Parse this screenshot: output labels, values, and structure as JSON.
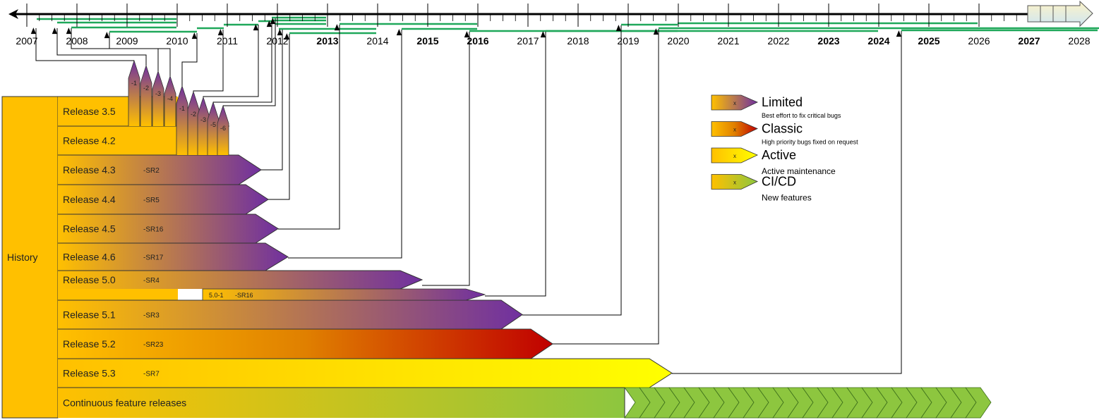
{
  "timeline": {
    "years": [
      {
        "label": "2007",
        "bold": false
      },
      {
        "label": "2008",
        "bold": false
      },
      {
        "label": "2009",
        "bold": false
      },
      {
        "label": "2010",
        "bold": false
      },
      {
        "label": "2011",
        "bold": false
      },
      {
        "label": "2012",
        "bold": false
      },
      {
        "label": "2013",
        "bold": true
      },
      {
        "label": "2014",
        "bold": false
      },
      {
        "label": "2015",
        "bold": true
      },
      {
        "label": "2016",
        "bold": true
      },
      {
        "label": "2017",
        "bold": false
      },
      {
        "label": "2018",
        "bold": false
      },
      {
        "label": "2019",
        "bold": false
      },
      {
        "label": "2020",
        "bold": false
      },
      {
        "label": "2021",
        "bold": false
      },
      {
        "label": "2022",
        "bold": false
      },
      {
        "label": "2023",
        "bold": true
      },
      {
        "label": "2024",
        "bold": true
      },
      {
        "label": "2025",
        "bold": true
      },
      {
        "label": "2026",
        "bold": false
      },
      {
        "label": "2027",
        "bold": true
      },
      {
        "label": "2028",
        "bold": false
      }
    ]
  },
  "history_label": "History",
  "releases": [
    {
      "label": "Release 3.5",
      "sr": "",
      "type": "limited"
    },
    {
      "label": "Release 4.2",
      "sr": "",
      "type": "limited"
    },
    {
      "label": "Release 4.3",
      "sr": "-SR2",
      "type": "limited"
    },
    {
      "label": "Release 4.4",
      "sr": "-SR5",
      "type": "limited"
    },
    {
      "label": "Release 4.5",
      "sr": "-SR16",
      "type": "limited"
    },
    {
      "label": "Release 4.6",
      "sr": "-SR17",
      "type": "limited"
    },
    {
      "label": "Release 5.0",
      "sr": "-SR4",
      "type": "limited"
    },
    {
      "label": "Release 5.1",
      "sr": "-SR3",
      "type": "limited"
    },
    {
      "label": "Release 5.2",
      "sr": "-SR23",
      "type": "classic"
    },
    {
      "label": "Release 5.3",
      "sr": "-SR7",
      "type": "active"
    },
    {
      "label": "Continuous feature releases",
      "sr": "",
      "type": "cicd"
    }
  ],
  "sub_release": {
    "label": "5.0-1",
    "sr": "-SR16",
    "type": "limited"
  },
  "markers_3_5": [
    "-1",
    "-2",
    "-3",
    "-4"
  ],
  "markers_4_2": [
    "-1",
    "-2",
    "-3",
    "-5",
    "-6"
  ],
  "legend": [
    {
      "title": "Limited",
      "desc": "Best effort to fix critical bugs",
      "type": "limited",
      "mark": "x"
    },
    {
      "title": "Classic",
      "desc": "High priority bugs fixed on request",
      "type": "classic",
      "mark": "x"
    },
    {
      "title": "Active",
      "desc": "Active maintenance",
      "type": "active",
      "mark": "x"
    },
    {
      "title": "CI/CD",
      "desc": "New features",
      "type": "cicd",
      "mark": "x"
    }
  ],
  "colors": {
    "base": "#ffc000",
    "limited": "#7030a0",
    "classic": "#c00000",
    "active": "#ffff00",
    "cicd": "#8dc63f",
    "lifetime": "#1fa85a"
  }
}
